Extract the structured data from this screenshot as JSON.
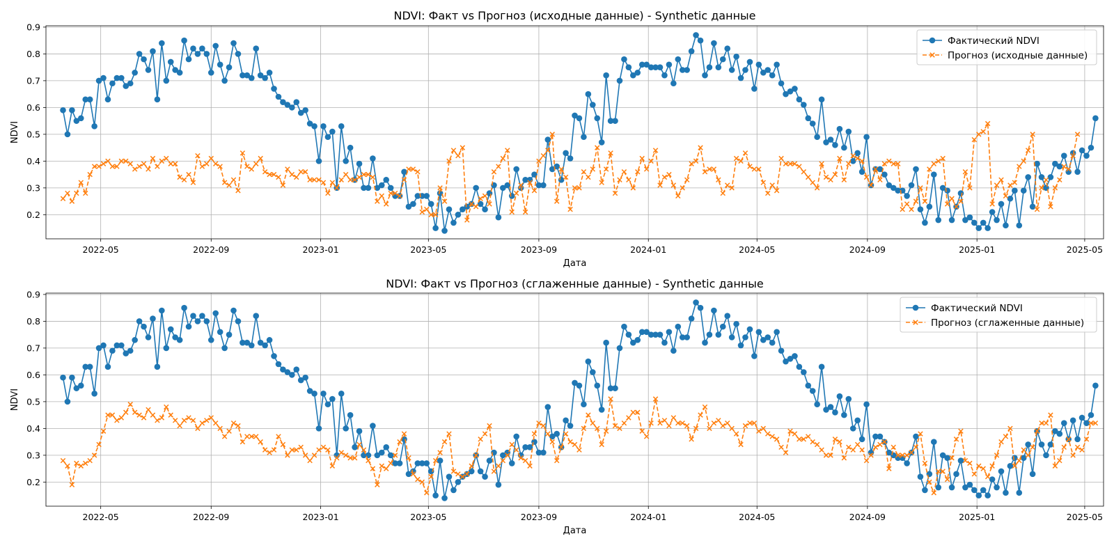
{
  "chart_data": [
    {
      "type": "line",
      "title": "NDVI: Факт vs Прогноз (исходные данные) - Synthetic данные",
      "xlabel": "Дата",
      "ylabel": "NDVI",
      "grid": true,
      "legend_position": "top-right",
      "xlim": [
        "2022-03-01",
        "2025-05-22"
      ],
      "ylim": [
        0.11,
        0.905
      ],
      "xticks": [
        "2022-05",
        "2022-09",
        "2023-01",
        "2023-05",
        "2023-09",
        "2024-01",
        "2024-05",
        "2024-09",
        "2025-01",
        "2025-05"
      ],
      "yticks": [
        "0.2",
        "0.3",
        "0.4",
        "0.5",
        "0.6",
        "0.7",
        "0.8",
        "0.9"
      ],
      "series": [
        {
          "name": "Фактический NDVI",
          "color": "#1f77b4",
          "style": "solid",
          "marker": "circle",
          "x_start": "2022-03-20",
          "step_days": 5,
          "values": [
            0.59,
            0.5,
            0.59,
            0.55,
            0.56,
            0.63,
            0.63,
            0.53,
            0.7,
            0.71,
            0.63,
            0.69,
            0.71,
            0.71,
            0.68,
            0.69,
            0.73,
            0.8,
            0.78,
            0.74,
            0.81,
            0.63,
            0.84,
            0.7,
            0.77,
            0.74,
            0.73,
            0.85,
            0.78,
            0.82,
            0.8,
            0.82,
            0.8,
            0.73,
            0.83,
            0.76,
            0.7,
            0.75,
            0.84,
            0.8,
            0.72,
            0.72,
            0.71,
            0.82,
            0.72,
            0.71,
            0.73,
            0.67,
            0.64,
            0.62,
            0.61,
            0.6,
            0.62,
            0.58,
            0.59,
            0.54,
            0.53,
            0.4,
            0.53,
            0.49,
            0.51,
            0.3,
            0.53,
            0.4,
            0.45,
            0.33,
            0.39,
            0.3,
            0.3,
            0.41,
            0.3,
            0.31,
            0.33,
            0.3,
            0.27,
            0.27,
            0.36,
            0.23,
            0.24,
            0.27,
            0.27,
            0.27,
            0.24,
            0.15,
            0.28,
            0.14,
            0.22,
            0.17,
            0.2,
            0.22,
            0.23,
            0.24,
            0.3,
            0.24,
            0.22,
            0.28,
            0.31,
            0.19,
            0.3,
            0.31,
            0.27,
            0.37,
            0.3,
            0.33,
            0.33,
            0.35,
            0.31,
            0.31,
            0.48,
            0.37,
            0.38,
            0.33,
            0.43,
            0.41,
            0.57,
            0.56,
            0.49,
            0.65,
            0.61,
            0.56,
            0.47,
            0.72,
            0.55,
            0.55,
            0.7,
            0.78,
            0.75,
            0.72,
            0.73,
            0.76,
            0.76,
            0.75,
            0.75,
            0.75,
            0.72,
            0.76,
            0.69,
            0.78,
            0.74,
            0.74,
            0.81,
            0.87,
            0.85,
            0.72,
            0.75,
            0.84,
            0.75,
            0.78,
            0.82,
            0.74,
            0.79,
            0.71,
            0.74,
            0.77,
            0.67,
            0.76,
            0.73,
            0.74,
            0.72,
            0.76,
            0.69,
            0.65,
            0.66,
            0.67,
            0.63,
            0.61,
            0.56,
            0.54,
            0.49,
            0.63,
            0.47,
            0.48,
            0.46,
            0.52,
            0.45,
            0.51,
            0.4,
            0.43,
            0.36,
            0.49,
            0.31,
            0.37,
            0.37,
            0.35,
            0.31,
            0.3,
            0.29,
            0.29,
            0.27,
            0.31,
            0.37,
            0.22,
            0.17,
            0.23,
            0.35,
            0.18,
            0.3,
            0.29,
            0.18,
            0.23,
            0.28,
            0.18,
            0.19,
            0.17,
            0.15,
            0.17,
            0.15,
            0.21,
            0.18,
            0.24,
            0.16,
            0.26,
            0.29,
            0.16,
            0.29,
            0.34,
            0.23,
            0.39,
            0.34,
            0.3,
            0.34,
            0.39,
            0.38,
            0.42,
            0.36,
            0.43,
            0.36,
            0.44,
            0.42,
            0.45,
            0.56
          ]
        },
        {
          "name": "Прогноз (исходные данные)",
          "color": "#ff7f0e",
          "style": "dashed",
          "marker": "x",
          "x_start": "2022-03-20",
          "step_days": 5,
          "values": [
            0.26,
            0.28,
            0.25,
            0.28,
            0.32,
            0.28,
            0.35,
            0.38,
            0.38,
            0.39,
            0.4,
            0.38,
            0.38,
            0.4,
            0.4,
            0.39,
            0.37,
            0.38,
            0.39,
            0.37,
            0.41,
            0.38,
            0.4,
            0.41,
            0.39,
            0.39,
            0.34,
            0.33,
            0.35,
            0.32,
            0.42,
            0.38,
            0.39,
            0.41,
            0.39,
            0.38,
            0.32,
            0.31,
            0.33,
            0.29,
            0.43,
            0.38,
            0.37,
            0.39,
            0.41,
            0.36,
            0.35,
            0.35,
            0.34,
            0.31,
            0.37,
            0.35,
            0.34,
            0.36,
            0.36,
            0.33,
            0.33,
            0.33,
            0.32,
            0.28,
            0.32,
            0.3,
            0.33,
            0.35,
            0.33,
            0.33,
            0.34,
            0.35,
            0.35,
            0.34,
            0.25,
            0.27,
            0.24,
            0.28,
            0.28,
            0.27,
            0.33,
            0.37,
            0.37,
            0.36,
            0.21,
            0.22,
            0.2,
            0.2,
            0.3,
            0.25,
            0.4,
            0.44,
            0.42,
            0.45,
            0.18,
            0.24,
            0.23,
            0.26,
            0.27,
            0.24,
            0.36,
            0.38,
            0.41,
            0.44,
            0.21,
            0.28,
            0.31,
            0.21,
            0.32,
            0.29,
            0.4,
            0.42,
            0.44,
            0.5,
            0.25,
            0.37,
            0.34,
            0.22,
            0.3,
            0.3,
            0.36,
            0.34,
            0.37,
            0.45,
            0.32,
            0.37,
            0.43,
            0.28,
            0.33,
            0.36,
            0.33,
            0.3,
            0.36,
            0.41,
            0.37,
            0.4,
            0.44,
            0.31,
            0.34,
            0.35,
            0.31,
            0.27,
            0.3,
            0.33,
            0.39,
            0.4,
            0.45,
            0.36,
            0.37,
            0.37,
            0.33,
            0.28,
            0.31,
            0.3,
            0.41,
            0.4,
            0.43,
            0.38,
            0.37,
            0.37,
            0.32,
            0.28,
            0.31,
            0.29,
            0.41,
            0.39,
            0.39,
            0.39,
            0.38,
            0.36,
            0.34,
            0.32,
            0.3,
            0.39,
            0.34,
            0.33,
            0.35,
            0.41,
            0.33,
            0.39,
            0.42,
            0.41,
            0.4,
            0.34,
            0.31,
            0.37,
            0.33,
            0.39,
            0.4,
            0.39,
            0.39,
            0.22,
            0.24,
            0.22,
            0.25,
            0.3,
            0.25,
            0.37,
            0.39,
            0.4,
            0.41,
            0.24,
            0.26,
            0.23,
            0.25,
            0.36,
            0.3,
            0.48,
            0.5,
            0.51,
            0.54,
            0.24,
            0.31,
            0.33,
            0.27,
            0.31,
            0.32,
            0.38,
            0.4,
            0.44,
            0.5,
            0.22,
            0.3,
            0.33,
            0.23,
            0.3,
            0.33,
            0.38,
            0.37,
            0.42,
            0.5
          ]
        }
      ]
    },
    {
      "type": "line",
      "title": "NDVI: Факт vs Прогноз (сглаженные данные) - Synthetic данные",
      "xlabel": "Дата",
      "ylabel": "NDVI",
      "grid": true,
      "legend_position": "top-right",
      "xlim": [
        "2022-03-01",
        "2025-05-22"
      ],
      "ylim": [
        0.11,
        0.905
      ],
      "xticks": [
        "2022-05",
        "2022-09",
        "2023-01",
        "2023-05",
        "2023-09",
        "2024-01",
        "2024-05",
        "2024-09",
        "2025-01",
        "2025-05"
      ],
      "yticks": [
        "0.2",
        "0.3",
        "0.4",
        "0.5",
        "0.6",
        "0.7",
        "0.8",
        "0.9"
      ],
      "series": [
        {
          "name": "Фактический NDVI",
          "color": "#1f77b4",
          "style": "solid",
          "marker": "circle",
          "x_start": "2022-03-20",
          "step_days": 5,
          "values": [
            0.59,
            0.5,
            0.59,
            0.55,
            0.56,
            0.63,
            0.63,
            0.53,
            0.7,
            0.71,
            0.63,
            0.69,
            0.71,
            0.71,
            0.68,
            0.69,
            0.73,
            0.8,
            0.78,
            0.74,
            0.81,
            0.63,
            0.84,
            0.7,
            0.77,
            0.74,
            0.73,
            0.85,
            0.78,
            0.82,
            0.8,
            0.82,
            0.8,
            0.73,
            0.83,
            0.76,
            0.7,
            0.75,
            0.84,
            0.8,
            0.72,
            0.72,
            0.71,
            0.82,
            0.72,
            0.71,
            0.73,
            0.67,
            0.64,
            0.62,
            0.61,
            0.6,
            0.62,
            0.58,
            0.59,
            0.54,
            0.53,
            0.4,
            0.53,
            0.49,
            0.51,
            0.3,
            0.53,
            0.4,
            0.45,
            0.33,
            0.39,
            0.3,
            0.3,
            0.41,
            0.3,
            0.31,
            0.33,
            0.3,
            0.27,
            0.27,
            0.36,
            0.23,
            0.24,
            0.27,
            0.27,
            0.27,
            0.24,
            0.15,
            0.28,
            0.14,
            0.22,
            0.17,
            0.2,
            0.22,
            0.23,
            0.24,
            0.3,
            0.24,
            0.22,
            0.28,
            0.31,
            0.19,
            0.3,
            0.31,
            0.27,
            0.37,
            0.3,
            0.33,
            0.33,
            0.35,
            0.31,
            0.31,
            0.48,
            0.37,
            0.38,
            0.33,
            0.43,
            0.41,
            0.57,
            0.56,
            0.49,
            0.65,
            0.61,
            0.56,
            0.47,
            0.72,
            0.55,
            0.55,
            0.7,
            0.78,
            0.75,
            0.72,
            0.73,
            0.76,
            0.76,
            0.75,
            0.75,
            0.75,
            0.72,
            0.76,
            0.69,
            0.78,
            0.74,
            0.74,
            0.81,
            0.87,
            0.85,
            0.72,
            0.75,
            0.84,
            0.75,
            0.78,
            0.82,
            0.74,
            0.79,
            0.71,
            0.74,
            0.77,
            0.67,
            0.76,
            0.73,
            0.74,
            0.72,
            0.76,
            0.69,
            0.65,
            0.66,
            0.67,
            0.63,
            0.61,
            0.56,
            0.54,
            0.49,
            0.63,
            0.47,
            0.48,
            0.46,
            0.52,
            0.45,
            0.51,
            0.4,
            0.43,
            0.36,
            0.49,
            0.31,
            0.37,
            0.37,
            0.35,
            0.31,
            0.3,
            0.29,
            0.29,
            0.27,
            0.31,
            0.37,
            0.22,
            0.17,
            0.23,
            0.35,
            0.18,
            0.3,
            0.29,
            0.18,
            0.23,
            0.28,
            0.18,
            0.19,
            0.17,
            0.15,
            0.17,
            0.15,
            0.21,
            0.18,
            0.24,
            0.16,
            0.26,
            0.29,
            0.16,
            0.29,
            0.34,
            0.23,
            0.39,
            0.34,
            0.3,
            0.34,
            0.39,
            0.38,
            0.42,
            0.36,
            0.43,
            0.36,
            0.44,
            0.42,
            0.45,
            0.56
          ]
        },
        {
          "name": "Прогноз (сглаженные данные)",
          "color": "#ff7f0e",
          "style": "dashed",
          "marker": "x",
          "x_start": "2022-03-20",
          "step_days": 5,
          "values": [
            0.28,
            0.26,
            0.19,
            0.27,
            0.26,
            0.27,
            0.28,
            0.3,
            0.34,
            0.39,
            0.45,
            0.45,
            0.43,
            0.44,
            0.46,
            0.49,
            0.46,
            0.45,
            0.44,
            0.47,
            0.45,
            0.43,
            0.44,
            0.48,
            0.45,
            0.43,
            0.41,
            0.43,
            0.44,
            0.43,
            0.4,
            0.42,
            0.43,
            0.44,
            0.42,
            0.4,
            0.37,
            0.39,
            0.42,
            0.41,
            0.35,
            0.37,
            0.37,
            0.37,
            0.35,
            0.32,
            0.31,
            0.32,
            0.37,
            0.34,
            0.3,
            0.32,
            0.32,
            0.33,
            0.3,
            0.28,
            0.3,
            0.32,
            0.33,
            0.32,
            0.26,
            0.29,
            0.31,
            0.3,
            0.29,
            0.29,
            0.34,
            0.32,
            0.28,
            0.25,
            0.19,
            0.26,
            0.25,
            0.27,
            0.3,
            0.35,
            0.38,
            0.29,
            0.23,
            0.21,
            0.2,
            0.16,
            0.22,
            0.28,
            0.31,
            0.35,
            0.38,
            0.24,
            0.23,
            0.22,
            0.23,
            0.26,
            0.3,
            0.36,
            0.38,
            0.41,
            0.24,
            0.26,
            0.28,
            0.3,
            0.34,
            0.32,
            0.29,
            0.28,
            0.26,
            0.38,
            0.42,
            0.41,
            0.38,
            0.35,
            0.28,
            0.33,
            0.38,
            0.35,
            0.34,
            0.32,
            0.4,
            0.45,
            0.42,
            0.4,
            0.34,
            0.39,
            0.51,
            0.41,
            0.4,
            0.42,
            0.44,
            0.46,
            0.46,
            0.39,
            0.37,
            0.42,
            0.51,
            0.42,
            0.43,
            0.41,
            0.44,
            0.42,
            0.42,
            0.41,
            0.36,
            0.4,
            0.45,
            0.48,
            0.4,
            0.42,
            0.43,
            0.41,
            0.42,
            0.4,
            0.38,
            0.34,
            0.41,
            0.42,
            0.42,
            0.39,
            0.4,
            0.38,
            0.37,
            0.36,
            0.33,
            0.31,
            0.39,
            0.38,
            0.36,
            0.36,
            0.37,
            0.35,
            0.34,
            0.32,
            0.3,
            0.3,
            0.36,
            0.35,
            0.29,
            0.33,
            0.32,
            0.34,
            0.32,
            0.28,
            0.3,
            0.33,
            0.34,
            0.35,
            0.25,
            0.33,
            0.3,
            0.3,
            0.3,
            0.31,
            0.33,
            0.38,
            0.27,
            0.2,
            0.16,
            0.24,
            0.24,
            0.21,
            0.29,
            0.36,
            0.39,
            0.28,
            0.27,
            0.23,
            0.26,
            0.25,
            0.22,
            0.26,
            0.3,
            0.35,
            0.37,
            0.4,
            0.26,
            0.28,
            0.32,
            0.3,
            0.33,
            0.39,
            0.42,
            0.42,
            0.45,
            0.26,
            0.28,
            0.33,
            0.36,
            0.3,
            0.33,
            0.32,
            0.36,
            0.42,
            0.42
          ]
        }
      ]
    }
  ]
}
